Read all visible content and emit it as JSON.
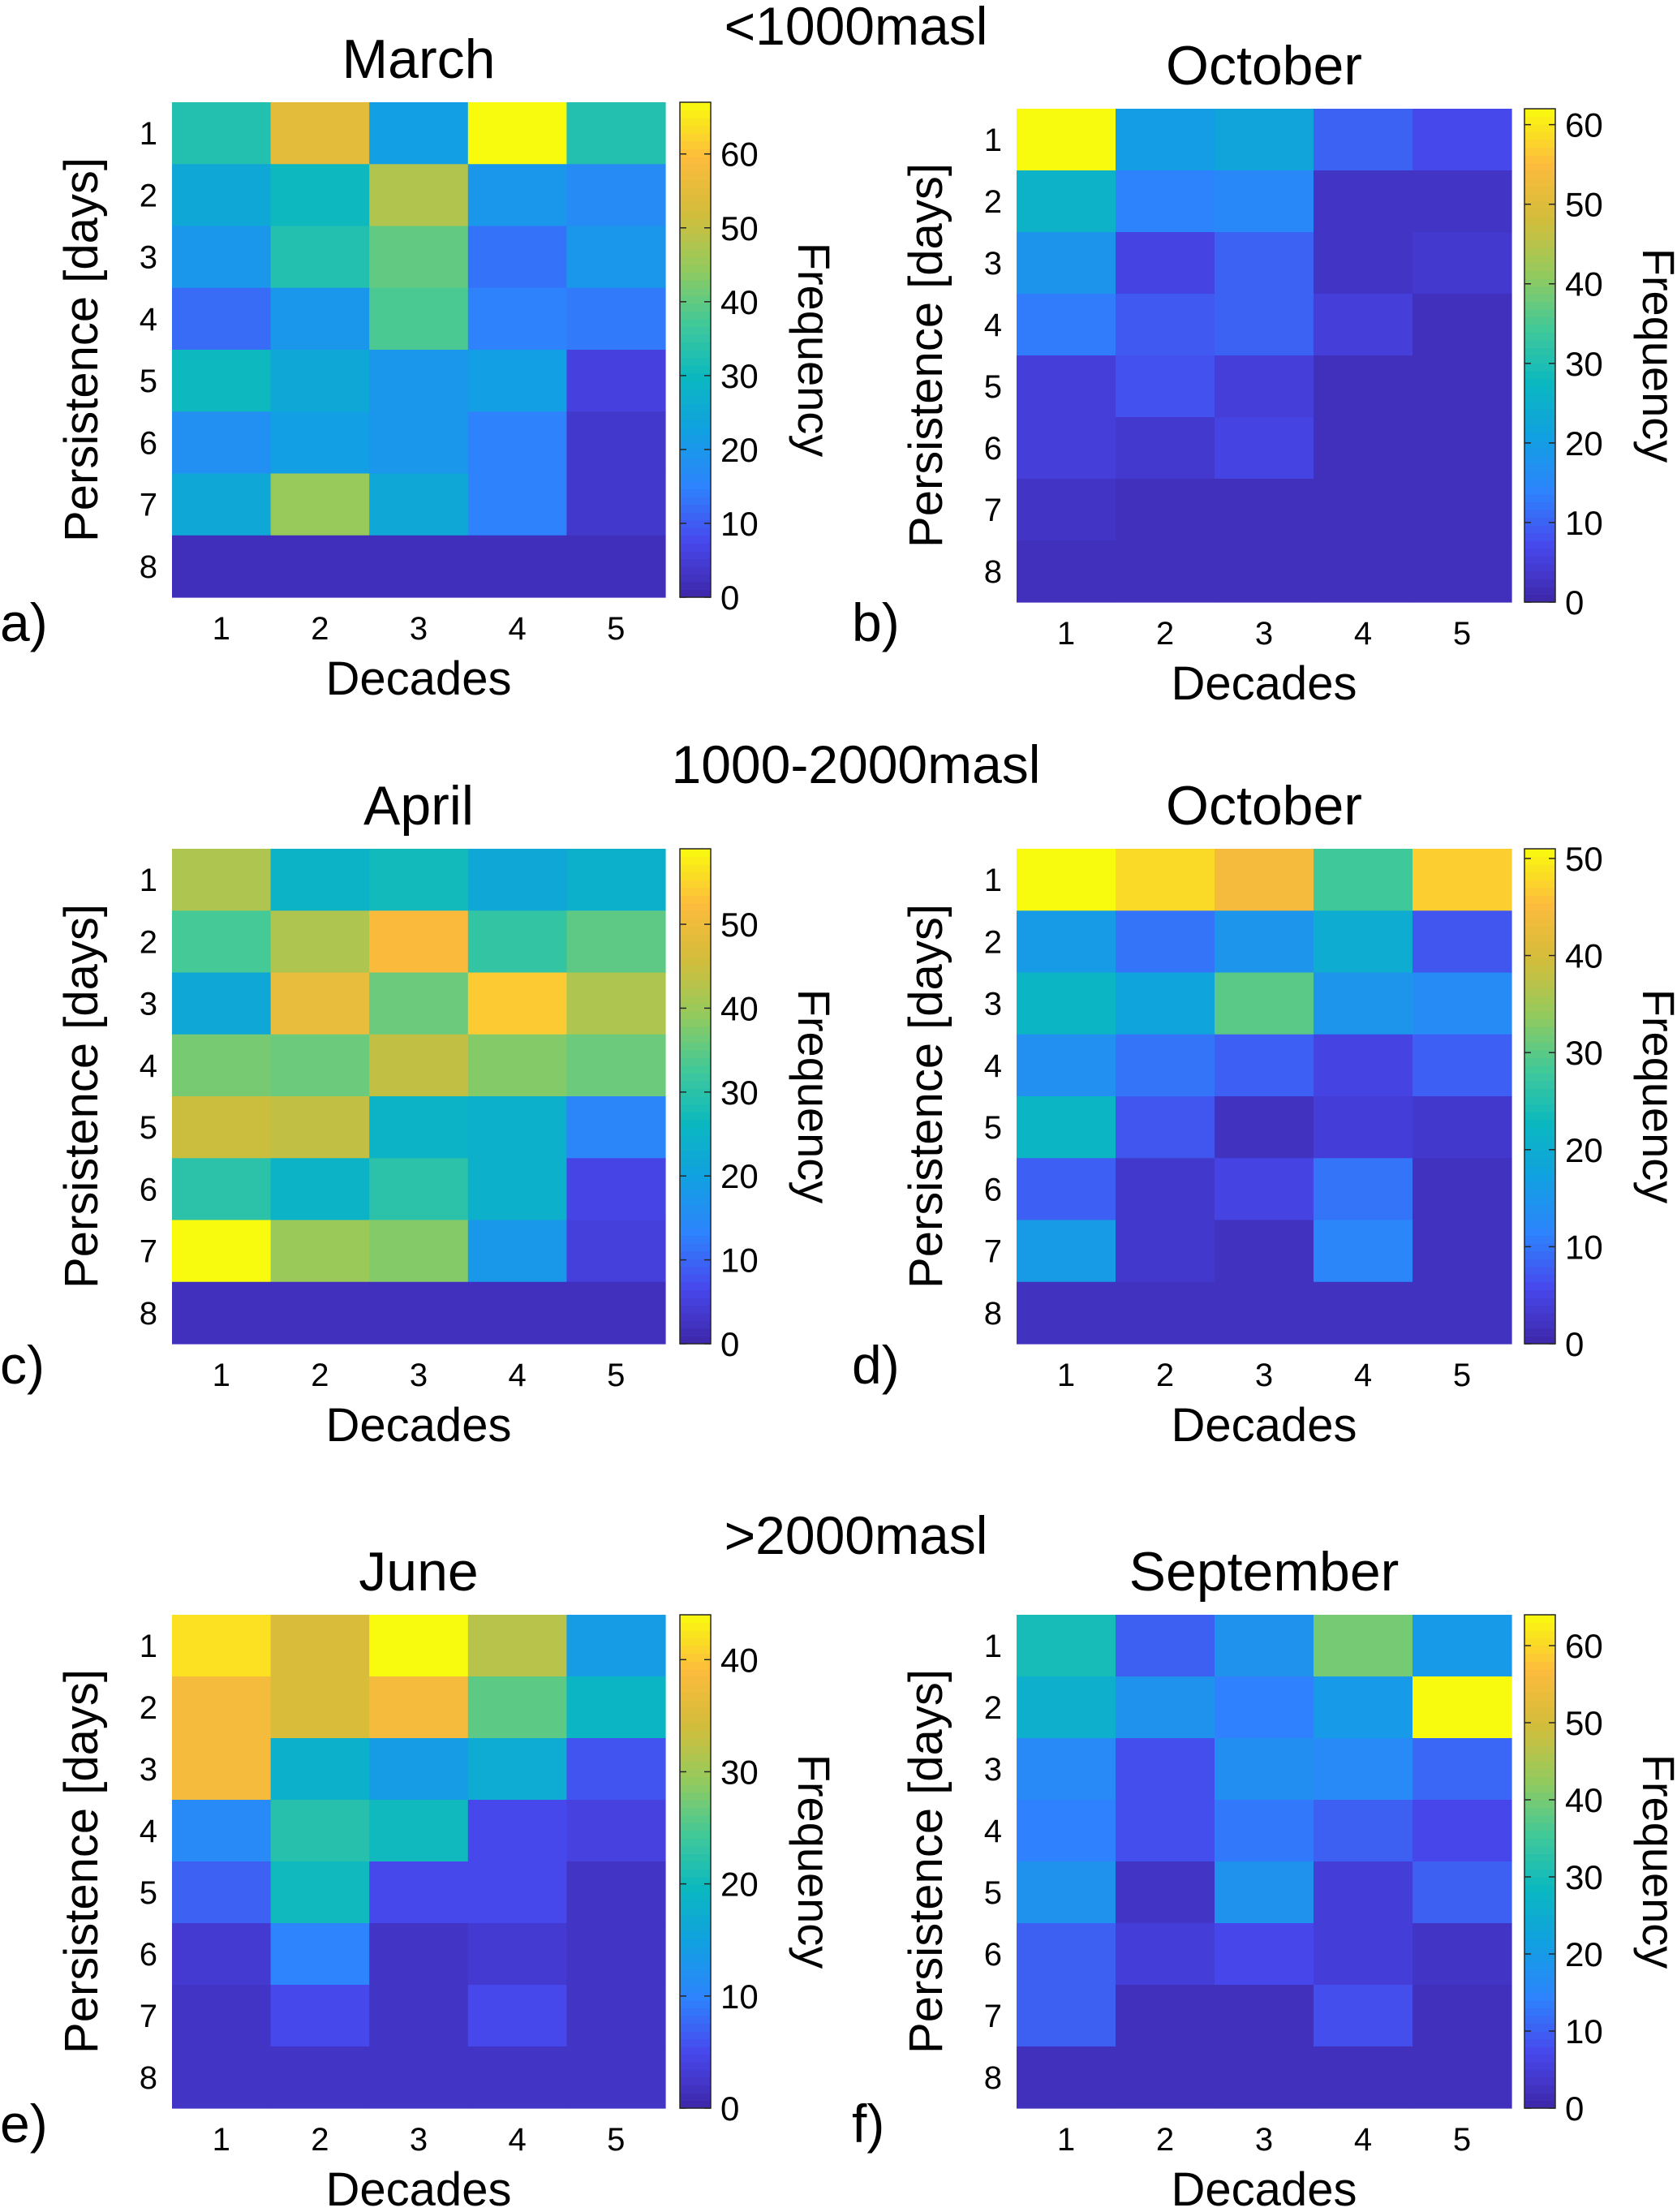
{
  "group_titles": [
    "<1000masl",
    "1000-2000masl",
    ">2000masl"
  ],
  "chart_data": [
    {
      "type": "heatmap",
      "panel": "a)",
      "title": "March",
      "xlabel": "Decades",
      "ylabel": "Persistence [days]",
      "colorbar_label": "Frequency",
      "x_ticks": [
        "1",
        "2",
        "3",
        "4",
        "5"
      ],
      "y_ticks": [
        "1",
        "2",
        "3",
        "4",
        "5",
        "6",
        "7",
        "8"
      ],
      "clim": [
        0,
        67
      ],
      "colorbar_ticks": [
        0,
        10,
        20,
        30,
        40,
        50,
        60
      ],
      "values": [
        [
          33,
          55,
          22,
          67,
          33
        ],
        [
          25,
          30,
          48,
          20,
          17
        ],
        [
          20,
          33,
          40,
          13,
          20
        ],
        [
          12,
          20,
          38,
          15,
          14
        ],
        [
          30,
          25,
          20,
          22,
          6
        ],
        [
          18,
          22,
          20,
          15,
          4
        ],
        [
          25,
          45,
          25,
          15,
          4
        ],
        [
          2,
          2,
          2,
          2,
          2
        ]
      ]
    },
    {
      "type": "heatmap",
      "panel": "b)",
      "title": "October",
      "xlabel": "Decades",
      "ylabel": "Persistence [days]",
      "colorbar_label": "Frequency",
      "x_ticks": [
        "1",
        "2",
        "3",
        "4",
        "5"
      ],
      "y_ticks": [
        "1",
        "2",
        "3",
        "4",
        "5",
        "6",
        "7",
        "8"
      ],
      "clim": [
        0,
        62
      ],
      "colorbar_ticks": [
        0,
        10,
        20,
        30,
        40,
        50,
        60
      ],
      "values": [
        [
          62,
          20,
          22,
          10,
          7
        ],
        [
          26,
          14,
          15,
          3,
          3
        ],
        [
          18,
          6,
          10,
          3,
          4
        ],
        [
          13,
          9,
          10,
          5,
          2
        ],
        [
          5,
          8,
          5,
          2,
          2
        ],
        [
          5,
          4,
          6,
          2,
          2
        ],
        [
          3,
          2,
          2,
          2,
          2
        ],
        [
          2,
          2,
          2,
          2,
          2
        ]
      ]
    },
    {
      "type": "heatmap",
      "panel": "c)",
      "title": "April",
      "xlabel": "Decades",
      "ylabel": "Persistence [days]",
      "colorbar_label": "Frequency",
      "x_ticks": [
        "1",
        "2",
        "3",
        "4",
        "5"
      ],
      "y_ticks": [
        "1",
        "2",
        "3",
        "4",
        "5",
        "6",
        "7",
        "8"
      ],
      "clim": [
        0,
        59
      ],
      "colorbar_ticks": [
        0,
        10,
        20,
        30,
        40,
        50
      ],
      "values": [
        [
          42,
          25,
          27,
          22,
          24
        ],
        [
          33,
          42,
          52,
          31,
          35
        ],
        [
          22,
          49,
          36,
          54,
          42
        ],
        [
          37,
          36,
          44,
          38,
          36
        ],
        [
          45,
          44,
          25,
          24,
          14
        ],
        [
          30,
          25,
          30,
          24,
          6
        ],
        [
          59,
          40,
          38,
          18,
          5
        ],
        [
          2,
          2,
          2,
          2,
          2
        ]
      ]
    },
    {
      "type": "heatmap",
      "panel": "d)",
      "title": "October",
      "xlabel": "Decades",
      "ylabel": "Persistence [days]",
      "colorbar_label": "Frequency",
      "x_ticks": [
        "1",
        "2",
        "3",
        "4",
        "5"
      ],
      "y_ticks": [
        "1",
        "2",
        "3",
        "4",
        "5",
        "6",
        "7",
        "8"
      ],
      "clim": [
        0,
        51
      ],
      "colorbar_ticks": [
        0,
        10,
        20,
        30,
        40,
        50
      ],
      "values": [
        [
          51,
          48,
          44,
          28,
          47
        ],
        [
          16,
          10,
          15,
          20,
          7
        ],
        [
          22,
          18,
          30,
          15,
          13
        ],
        [
          14,
          10,
          8,
          5,
          8
        ],
        [
          22,
          7,
          2,
          4,
          3
        ],
        [
          8,
          3,
          5,
          10,
          2
        ],
        [
          16,
          3,
          2,
          12,
          2
        ],
        [
          2,
          2,
          2,
          2,
          2
        ]
      ]
    },
    {
      "type": "heatmap",
      "panel": "e)",
      "title": "June",
      "xlabel": "Decades",
      "ylabel": "Persistence [days]",
      "colorbar_label": "Frequency",
      "x_ticks": [
        "1",
        "2",
        "3",
        "4",
        "5"
      ],
      "y_ticks": [
        "1",
        "2",
        "3",
        "4",
        "5",
        "6",
        "7",
        "8"
      ],
      "clim": [
        0,
        44
      ],
      "colorbar_ticks": [
        0,
        10,
        20,
        30,
        40
      ],
      "values": [
        [
          42,
          35,
          44,
          32,
          14
        ],
        [
          38,
          35,
          38,
          26,
          19
        ],
        [
          38,
          18,
          14,
          17,
          6
        ],
        [
          11,
          22,
          20,
          5,
          4
        ],
        [
          7,
          20,
          5,
          5,
          2
        ],
        [
          3,
          10,
          2,
          3,
          2
        ],
        [
          2,
          5,
          2,
          5,
          2
        ],
        [
          2,
          2,
          2,
          2,
          2
        ]
      ]
    },
    {
      "type": "heatmap",
      "panel": "f)",
      "title": "September",
      "xlabel": "Decades",
      "ylabel": "Persistence [days]",
      "colorbar_label": "Frequency",
      "x_ticks": [
        "1",
        "2",
        "3",
        "4",
        "5"
      ],
      "y_ticks": [
        "1",
        "2",
        "3",
        "4",
        "5",
        "6",
        "7",
        "8"
      ],
      "clim": [
        0,
        64
      ],
      "colorbar_ticks": [
        0,
        10,
        20,
        30,
        40,
        50,
        60
      ],
      "values": [
        [
          30,
          10,
          18,
          40,
          20
        ],
        [
          26,
          18,
          14,
          20,
          64
        ],
        [
          16,
          8,
          17,
          16,
          11
        ],
        [
          14,
          8,
          13,
          10,
          7
        ],
        [
          18,
          3,
          18,
          5,
          10
        ],
        [
          10,
          5,
          7,
          5,
          3
        ],
        [
          10,
          2,
          2,
          8,
          2
        ],
        [
          2,
          2,
          2,
          2,
          2
        ]
      ]
    }
  ]
}
